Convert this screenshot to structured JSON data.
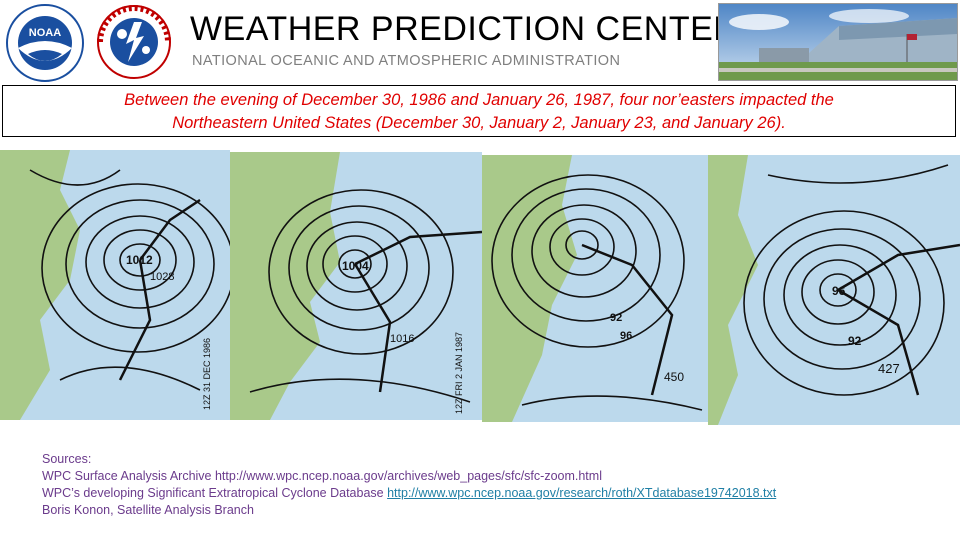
{
  "header": {
    "title": "WEATHER PREDICTION CENTER",
    "subtitle": "NATIONAL OCEANIC AND ATMOSPHERIC ADMINISTRATION",
    "noaa_logo_text": "NOAA",
    "nws_logo_text": "NATIONAL WEATHER SERVICE"
  },
  "banner": {
    "line1": "Between the evening of December 30, 1986 and January 26, 1987, four nor’easters impacted the",
    "line2": "Northeastern United States (December 30, January 2, January 23, and January 26)."
  },
  "maps": [
    {
      "name": "surface-map-dec-30",
      "labels": [
        "12Z 31 DEC 1986",
        "1012",
        "1028"
      ]
    },
    {
      "name": "surface-map-jan-2",
      "labels": [
        "12Z FRI 2 JAN 1987",
        "1004",
        "1016"
      ]
    },
    {
      "name": "surface-map-jan-23",
      "labels": [
        "92",
        "96",
        "450"
      ]
    },
    {
      "name": "surface-map-jan-26",
      "labels": [
        "96",
        "92",
        "427"
      ]
    }
  ],
  "sources": {
    "heading": "Sources:",
    "line1_text": "WPC Surface Analysis Archive   http://www.wpc.ncep.noaa.gov/archives/web_pages/sfc/sfc-zoom.html",
    "line2_text": "WPC’s developing Significant Extratropical Cyclone Database ",
    "line2_link": "http://www.wpc.ncep.noaa.gov/research/roth/XTdatabase19742018.txt",
    "line3_text": "Boris Konon, Satellite Analysis Branch"
  },
  "colors": {
    "banner_text": "#e00000",
    "source_text": "#6b3b8c",
    "link": "#1f7fa5",
    "ocean": "#bcd9ec",
    "land": "#a9c98a",
    "noaa_blue": "#1a4fa0"
  }
}
